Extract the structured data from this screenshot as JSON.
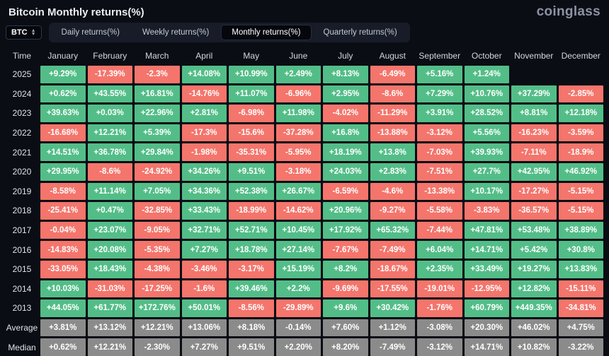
{
  "header": {
    "title": "Bitcoin Monthly returns(%)",
    "logo": "coinglass"
  },
  "controls": {
    "symbol": "BTC",
    "tabs": [
      {
        "label": "Daily returns(%)",
        "active": false
      },
      {
        "label": "Weekly returns(%)",
        "active": false
      },
      {
        "label": "Monthly returns(%)",
        "active": true
      },
      {
        "label": "Quarterly returns(%)",
        "active": false
      }
    ]
  },
  "colors": {
    "positive": "#53bd88",
    "negative": "#f4756c",
    "stat": "#8b8b8b"
  },
  "chart_data": {
    "type": "table",
    "title": "Bitcoin Monthly returns(%)",
    "columns": [
      "Time",
      "January",
      "February",
      "March",
      "April",
      "May",
      "June",
      "July",
      "August",
      "September",
      "October",
      "November",
      "December"
    ],
    "rows": [
      {
        "label": "2025",
        "stat": false,
        "values": [
          "+9.29%",
          "-17.39%",
          "-2.3%",
          "+14.08%",
          "+10.99%",
          "+2.49%",
          "+8.13%",
          "-6.49%",
          "+5.16%",
          "+1.24%",
          "",
          ""
        ]
      },
      {
        "label": "2024",
        "stat": false,
        "values": [
          "+0.62%",
          "+43.55%",
          "+16.81%",
          "-14.76%",
          "+11.07%",
          "-6.96%",
          "+2.95%",
          "-8.6%",
          "+7.29%",
          "+10.76%",
          "+37.29%",
          "-2.85%"
        ]
      },
      {
        "label": "2023",
        "stat": false,
        "values": [
          "+39.63%",
          "+0.03%",
          "+22.96%",
          "+2.81%",
          "-6.98%",
          "+11.98%",
          "-4.02%",
          "-11.29%",
          "+3.91%",
          "+28.52%",
          "+8.81%",
          "+12.18%"
        ]
      },
      {
        "label": "2022",
        "stat": false,
        "values": [
          "-16.68%",
          "+12.21%",
          "+5.39%",
          "-17.3%",
          "-15.6%",
          "-37.28%",
          "+16.8%",
          "-13.88%",
          "-3.12%",
          "+5.56%",
          "-16.23%",
          "-3.59%"
        ]
      },
      {
        "label": "2021",
        "stat": false,
        "values": [
          "+14.51%",
          "+36.78%",
          "+29.84%",
          "-1.98%",
          "-35.31%",
          "-5.95%",
          "+18.19%",
          "+13.8%",
          "-7.03%",
          "+39.93%",
          "-7.11%",
          "-18.9%"
        ]
      },
      {
        "label": "2020",
        "stat": false,
        "values": [
          "+29.95%",
          "-8.6%",
          "-24.92%",
          "+34.26%",
          "+9.51%",
          "-3.18%",
          "+24.03%",
          "+2.83%",
          "-7.51%",
          "+27.7%",
          "+42.95%",
          "+46.92%"
        ]
      },
      {
        "label": "2019",
        "stat": false,
        "values": [
          "-8.58%",
          "+11.14%",
          "+7.05%",
          "+34.36%",
          "+52.38%",
          "+26.67%",
          "-6.59%",
          "-4.6%",
          "-13.38%",
          "+10.17%",
          "-17.27%",
          "-5.15%"
        ]
      },
      {
        "label": "2018",
        "stat": false,
        "values": [
          "-25.41%",
          "+0.47%",
          "-32.85%",
          "+33.43%",
          "-18.99%",
          "-14.62%",
          "+20.96%",
          "-9.27%",
          "-5.58%",
          "-3.83%",
          "-36.57%",
          "-5.15%"
        ]
      },
      {
        "label": "2017",
        "stat": false,
        "values": [
          "-0.04%",
          "+23.07%",
          "-9.05%",
          "+32.71%",
          "+52.71%",
          "+10.45%",
          "+17.92%",
          "+65.32%",
          "-7.44%",
          "+47.81%",
          "+53.48%",
          "+38.89%"
        ]
      },
      {
        "label": "2016",
        "stat": false,
        "values": [
          "-14.83%",
          "+20.08%",
          "-5.35%",
          "+7.27%",
          "+18.78%",
          "+27.14%",
          "-7.67%",
          "-7.49%",
          "+6.04%",
          "+14.71%",
          "+5.42%",
          "+30.8%"
        ]
      },
      {
        "label": "2015",
        "stat": false,
        "values": [
          "-33.05%",
          "+18.43%",
          "-4.38%",
          "-3.46%",
          "-3.17%",
          "+15.19%",
          "+8.2%",
          "-18.67%",
          "+2.35%",
          "+33.49%",
          "+19.27%",
          "+13.83%"
        ]
      },
      {
        "label": "2014",
        "stat": false,
        "values": [
          "+10.03%",
          "-31.03%",
          "-17.25%",
          "-1.6%",
          "+39.46%",
          "+2.2%",
          "-9.69%",
          "-17.55%",
          "-19.01%",
          "-12.95%",
          "+12.82%",
          "-15.11%"
        ]
      },
      {
        "label": "2013",
        "stat": false,
        "values": [
          "+44.05%",
          "+61.77%",
          "+172.76%",
          "+50.01%",
          "-8.56%",
          "-29.89%",
          "+9.6%",
          "+30.42%",
          "-1.76%",
          "+60.79%",
          "+449.35%",
          "-34.81%"
        ]
      },
      {
        "label": "Average",
        "stat": true,
        "values": [
          "+3.81%",
          "+13.12%",
          "+12.21%",
          "+13.06%",
          "+8.18%",
          "-0.14%",
          "+7.60%",
          "+1.12%",
          "-3.08%",
          "+20.30%",
          "+46.02%",
          "+4.75%"
        ]
      },
      {
        "label": "Median",
        "stat": true,
        "values": [
          "+0.62%",
          "+12.21%",
          "-2.30%",
          "+7.27%",
          "+9.51%",
          "+2.20%",
          "+8.20%",
          "-7.49%",
          "-3.12%",
          "+14.71%",
          "+10.82%",
          "-3.22%"
        ]
      }
    ]
  }
}
